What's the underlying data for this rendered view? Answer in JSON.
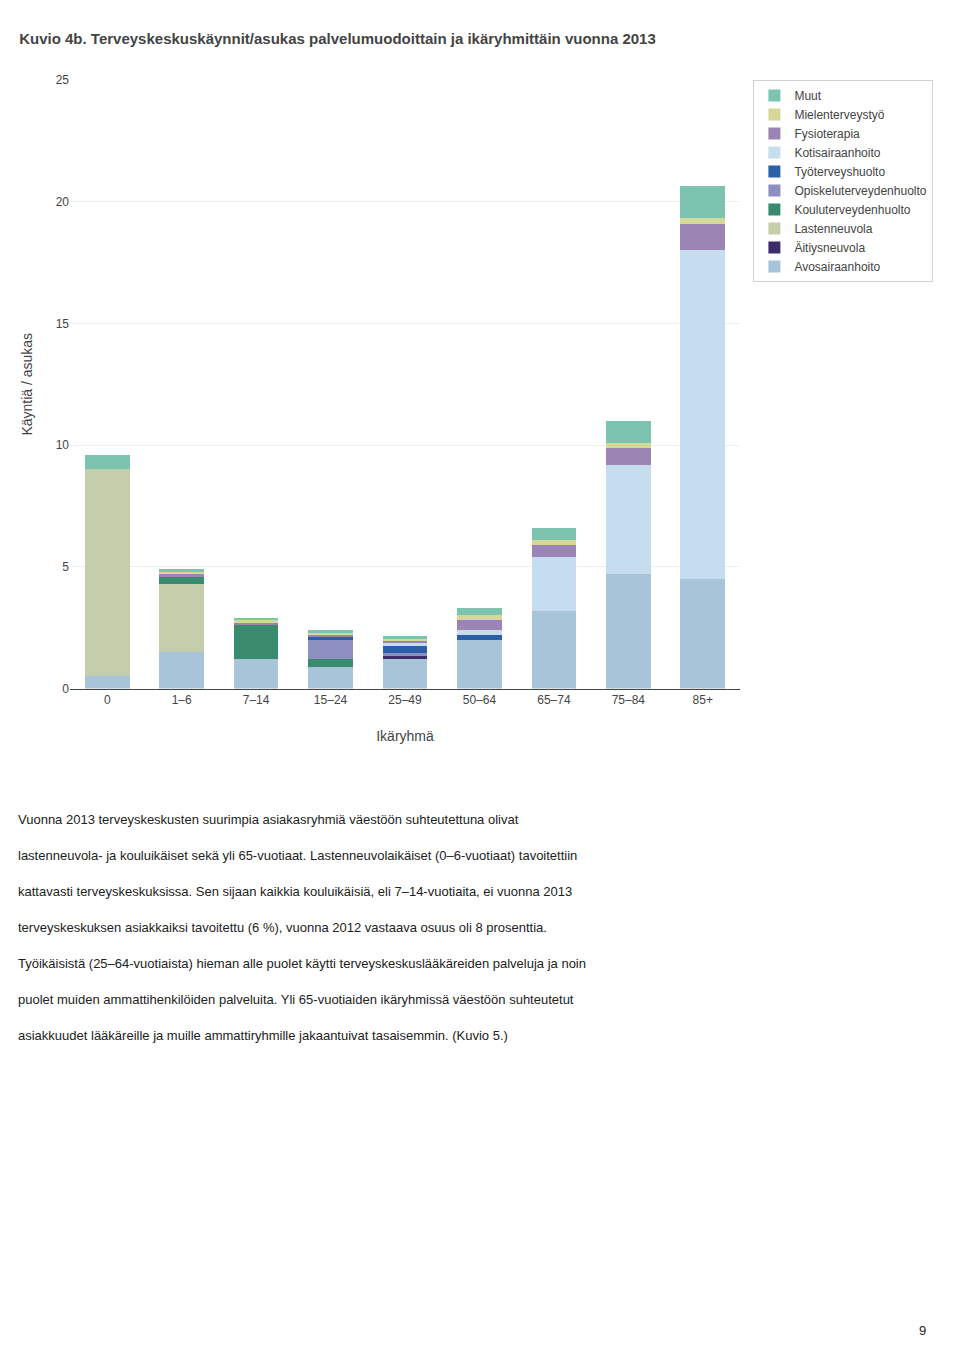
{
  "chart_data": {
    "type": "bar",
    "stacked": true,
    "title": "Kuvio 4b. Terveyskeskuskäynnit/asukas palvelumuodoittain ja ikäryhmittäin vuonna 2013",
    "xlabel": "Ikäryhmä",
    "ylabel": "Käyntiä / asukas",
    "categories": [
      "0",
      "1–6",
      "7–14",
      "15–24",
      "25–49",
      "50–64",
      "65–74",
      "75–84",
      "85+"
    ],
    "series": [
      {
        "name": "Avosairaanhoito",
        "color": "#a8c4d8",
        "values": [
          0.5,
          1.5,
          1.2,
          0.9,
          1.2,
          2.0,
          3.2,
          4.7,
          4.5
        ]
      },
      {
        "name": "Äitiysneuvola",
        "color": "#3d2b6b",
        "values": [
          0.0,
          0.0,
          0.0,
          0.0,
          0.15,
          0.0,
          0.0,
          0.0,
          0.0
        ]
      },
      {
        "name": "Lastenneuvola",
        "color": "#c5ceaa",
        "values": [
          8.5,
          2.8,
          0.0,
          0.0,
          0.0,
          0.0,
          0.0,
          0.0,
          0.0
        ]
      },
      {
        "name": "Kouluterveydenhuolto",
        "color": "#3a8a6e",
        "values": [
          0.0,
          0.3,
          1.4,
          0.3,
          0.0,
          0.0,
          0.0,
          0.0,
          0.0
        ]
      },
      {
        "name": "Opiskeluterveydenhuolto",
        "color": "#8c8fbf",
        "values": [
          0.0,
          0.0,
          0.0,
          0.8,
          0.1,
          0.0,
          0.0,
          0.0,
          0.0
        ]
      },
      {
        "name": "Työterveyshuolto",
        "color": "#2b5fa8",
        "values": [
          0.0,
          0.0,
          0.0,
          0.1,
          0.3,
          0.2,
          0.0,
          0.0,
          0.0
        ]
      },
      {
        "name": "Kotisairaanhoito",
        "color": "#c5ddef",
        "values": [
          0.0,
          0.0,
          0.0,
          0.0,
          0.1,
          0.2,
          2.2,
          4.5,
          13.5
        ]
      },
      {
        "name": "Fysioterapia",
        "color": "#9b85b5",
        "values": [
          0.0,
          0.1,
          0.1,
          0.1,
          0.1,
          0.4,
          0.5,
          0.7,
          1.1
        ]
      },
      {
        "name": "Mielenterveystyö",
        "color": "#d6d89a",
        "values": [
          0.0,
          0.1,
          0.1,
          0.1,
          0.1,
          0.2,
          0.2,
          0.2,
          0.25
        ]
      },
      {
        "name": "Muut",
        "color": "#7dc4b0",
        "values": [
          0.6,
          0.1,
          0.1,
          0.1,
          0.1,
          0.3,
          0.5,
          0.9,
          1.3
        ]
      }
    ],
    "ylim": [
      0,
      25
    ],
    "yticks": [
      0,
      5,
      10,
      15,
      20,
      25
    ],
    "grid": true,
    "legend": "right",
    "annotations": [
      "Vuonna 2013 terveyskeskusten suurimpia asiakasryhmiä väestöön suhteutettuna olivat",
      "lastenneuvola- ja kouluikäiset sekä yli 65-vuotiaat. Lastenneuvolaikäiset (0–6-vuotiaat) tavoitettiin",
      "kattavasti terveyskeskuksissa. Sen sijaan kaikkia kouluikäisiä, eli 7–14-vuotiaita, ei vuonna 2013",
      "terveyskeskuksen asiakkaiksi tavoitettu (6 %), vuonna 2012 vastaava osuus oli 8 prosenttia.",
      "Työikäisistä (25–64-vuotiaista) hieman alle puolet käytti terveyskeskuslääkäreiden palveluja ja noin",
      "puolet muiden ammattihenkilöiden palveluita. Yli 65-vuotiaiden ikäryhmissä väestöön suhteutetut",
      "asiakkuudet lääkäreille ja muille ammattiryhmille jakaantuivat tasaisemmin. (Kuvio 5.)",
      "9"
    ]
  }
}
